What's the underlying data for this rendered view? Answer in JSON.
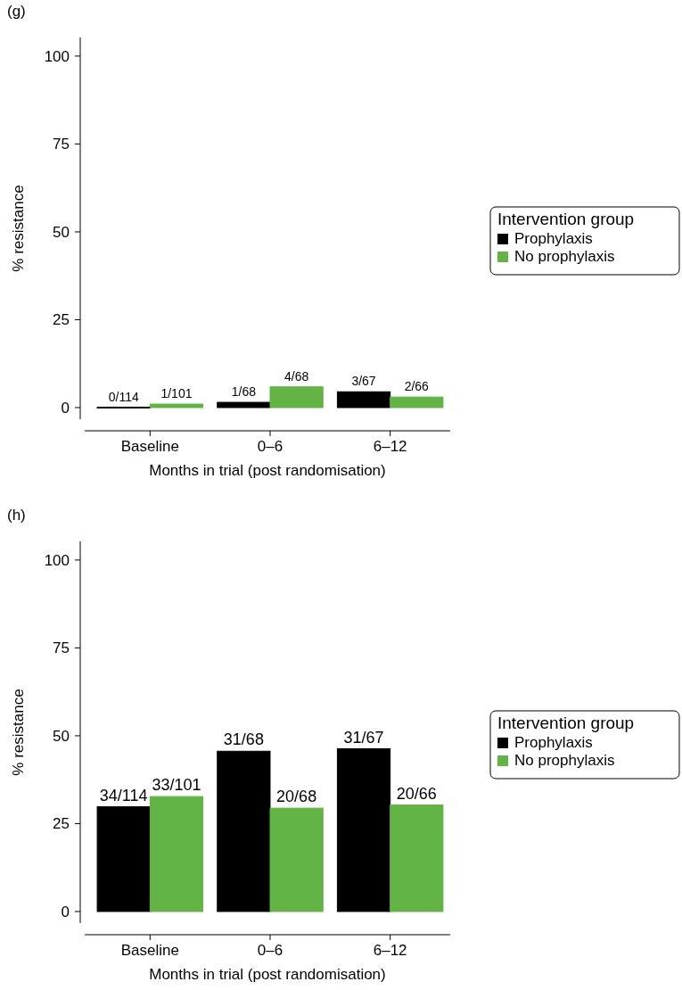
{
  "chart_data": [
    {
      "type": "bar",
      "title": "(g)",
      "xlabel": "Months in trial (post randomisation)",
      "ylabel": "% resistance",
      "legend_title": "Intervention group",
      "legend": "right",
      "categories": [
        "Baseline",
        "0–6",
        "6–12"
      ],
      "series": [
        {
          "name": "Prophylaxis",
          "color": "#000000",
          "values": [
            0,
            1.5,
            4.5
          ],
          "value_labels": [
            "0/114",
            "1/68",
            "3/67"
          ]
        },
        {
          "name": "No prophylaxis",
          "color": "#63b346",
          "values": [
            1,
            5.9,
            3
          ],
          "value_labels": [
            "1/101",
            "4/68",
            "2/66"
          ]
        }
      ],
      "ylim": [
        -3.3,
        105.3
      ],
      "yticks": [
        0,
        25,
        50,
        75,
        100
      ]
    },
    {
      "type": "bar",
      "title": "(h)",
      "xlabel": "Months in trial (post randomisation)",
      "ylabel": "% resistance",
      "legend_title": "Intervention group",
      "legend": "right",
      "categories": [
        "Baseline",
        "0–6",
        "6–12"
      ],
      "series": [
        {
          "name": "Prophylaxis",
          "color": "#000000",
          "values": [
            29.8,
            45.6,
            46.3
          ],
          "value_labels": [
            "34/114",
            "31/68",
            "31/67"
          ]
        },
        {
          "name": "No prophylaxis",
          "color": "#63b346",
          "values": [
            32.7,
            29.4,
            30.3
          ],
          "value_labels": [
            "33/101",
            "20/68",
            "20/66"
          ]
        }
      ],
      "ylim": [
        -3.3,
        105.3
      ],
      "yticks": [
        0,
        25,
        50,
        75,
        100
      ]
    }
  ]
}
